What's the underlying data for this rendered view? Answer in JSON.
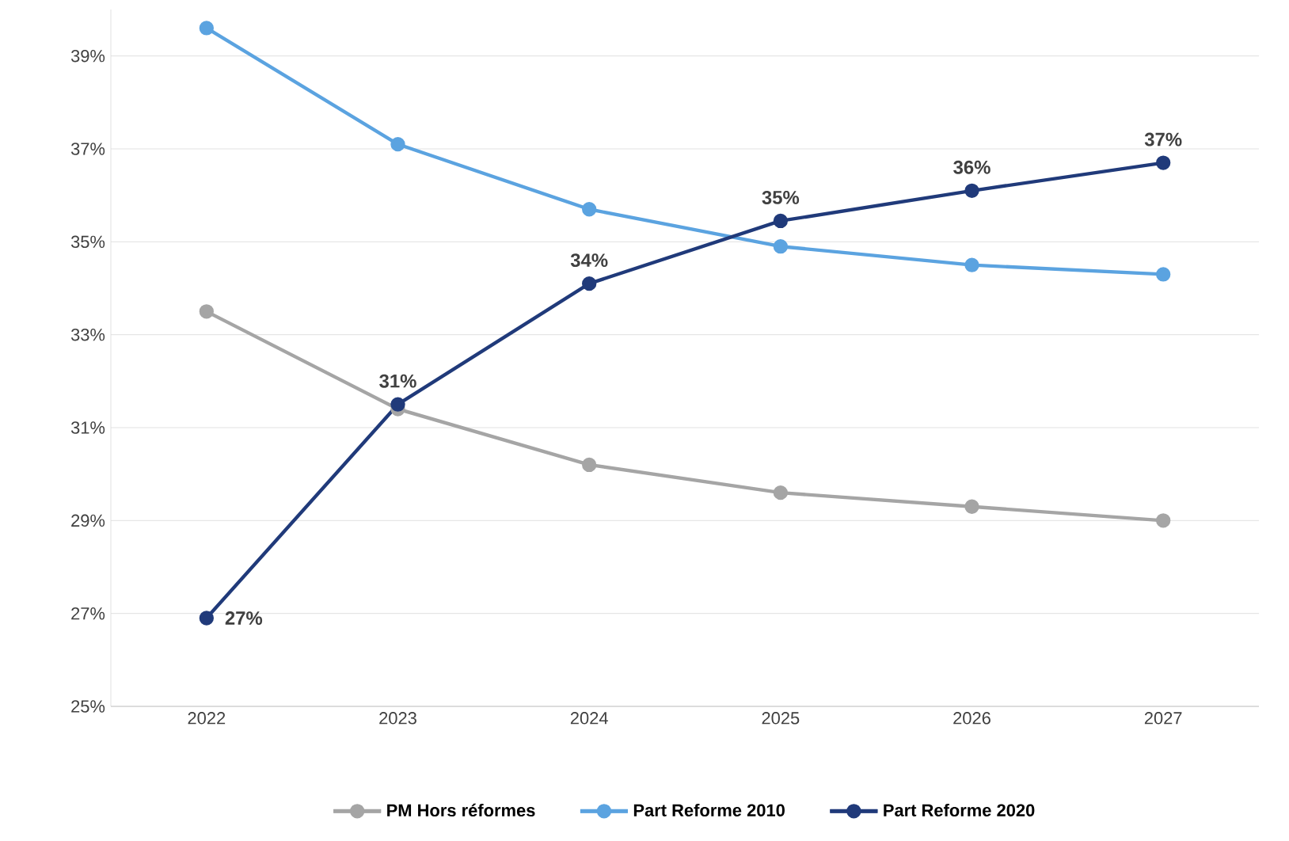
{
  "chart_data": {
    "type": "line",
    "categories": [
      "2022",
      "2023",
      "2024",
      "2025",
      "2026",
      "2027"
    ],
    "series": [
      {
        "name": "PM Hors réformes",
        "color": "#a5a5a5",
        "values": [
          33.5,
          31.4,
          30.2,
          29.6,
          29.3,
          29.0
        ]
      },
      {
        "name": "Part Reforme 2010",
        "color": "#5ba3e0",
        "values": [
          39.6,
          37.1,
          35.7,
          34.9,
          34.5,
          34.3
        ]
      },
      {
        "name": "Part Reforme 2020",
        "color": "#203a7a",
        "values": [
          26.9,
          31.5,
          34.1,
          35.45,
          36.1,
          36.7
        ],
        "value_labels": [
          "27%",
          "31%",
          "34%",
          "35%",
          "36%",
          "37%"
        ]
      }
    ],
    "ylim": [
      25,
      40
    ],
    "yticks": [
      {
        "value": 25,
        "label": "25%"
      },
      {
        "value": 27,
        "label": "27%"
      },
      {
        "value": 29,
        "label": "29%"
      },
      {
        "value": 31,
        "label": "31%"
      },
      {
        "value": 33,
        "label": "33%"
      },
      {
        "value": 35,
        "label": "35%"
      },
      {
        "value": 37,
        "label": "37%"
      },
      {
        "value": 39,
        "label": "39%"
      }
    ],
    "grid": "y",
    "legend": "bottom",
    "marker": "circle",
    "line_style": "solid"
  }
}
